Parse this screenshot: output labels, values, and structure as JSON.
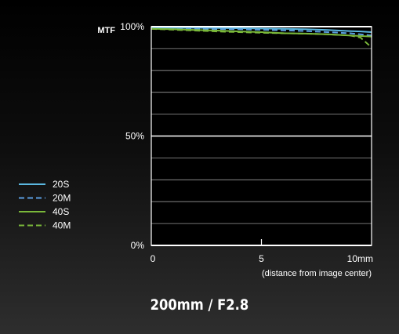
{
  "chart_data": {
    "type": "line",
    "title": "200mm / F2.8",
    "ylabel": "MTF",
    "xlabel": "(distance from image center)",
    "xlim": [
      0,
      10
    ],
    "ylim": [
      0,
      100
    ],
    "x_ticks": [
      {
        "value": 0,
        "label": "0"
      },
      {
        "value": 5,
        "label": "5"
      },
      {
        "value": 10,
        "label": "10mm"
      }
    ],
    "y_ticks": [
      {
        "value": 0,
        "label": "0%"
      },
      {
        "value": 50,
        "label": "50%"
      },
      {
        "value": 100,
        "label": "100%"
      }
    ],
    "grid": true,
    "grid_step": 10,
    "legend_position": "left",
    "series": [
      {
        "name": "20S",
        "color": "#5bb8e0",
        "dash": false,
        "x": [
          0,
          2,
          4,
          6,
          7,
          8,
          9,
          9.5,
          10
        ],
        "y": [
          99.5,
          99.5,
          99.3,
          99.0,
          98.8,
          98.5,
          98.0,
          97.8,
          97.5
        ]
      },
      {
        "name": "20M",
        "color": "#5b9ee0",
        "dash": true,
        "x": [
          0,
          2,
          4,
          6,
          7,
          8,
          9,
          9.5,
          10
        ],
        "y": [
          99.0,
          99.0,
          98.8,
          98.3,
          98.0,
          97.5,
          97.0,
          96.5,
          96.0
        ]
      },
      {
        "name": "40S",
        "color": "#7ab83a",
        "dash": false,
        "x": [
          0,
          1,
          2,
          3,
          4,
          5,
          6,
          7,
          8,
          9,
          10
        ],
        "y": [
          99.0,
          98.8,
          98.5,
          98.2,
          97.8,
          97.5,
          97.0,
          96.8,
          96.5,
          96.0,
          95.5
        ]
      },
      {
        "name": "40M",
        "color": "#7ab83a",
        "dash": true,
        "x": [
          0,
          1,
          2,
          3,
          4,
          5,
          6,
          7,
          8,
          9,
          9.5,
          10
        ],
        "y": [
          99.0,
          98.6,
          98.2,
          97.8,
          97.5,
          97.2,
          97.0,
          96.8,
          96.5,
          96.0,
          95.0,
          90.5
        ]
      }
    ]
  }
}
